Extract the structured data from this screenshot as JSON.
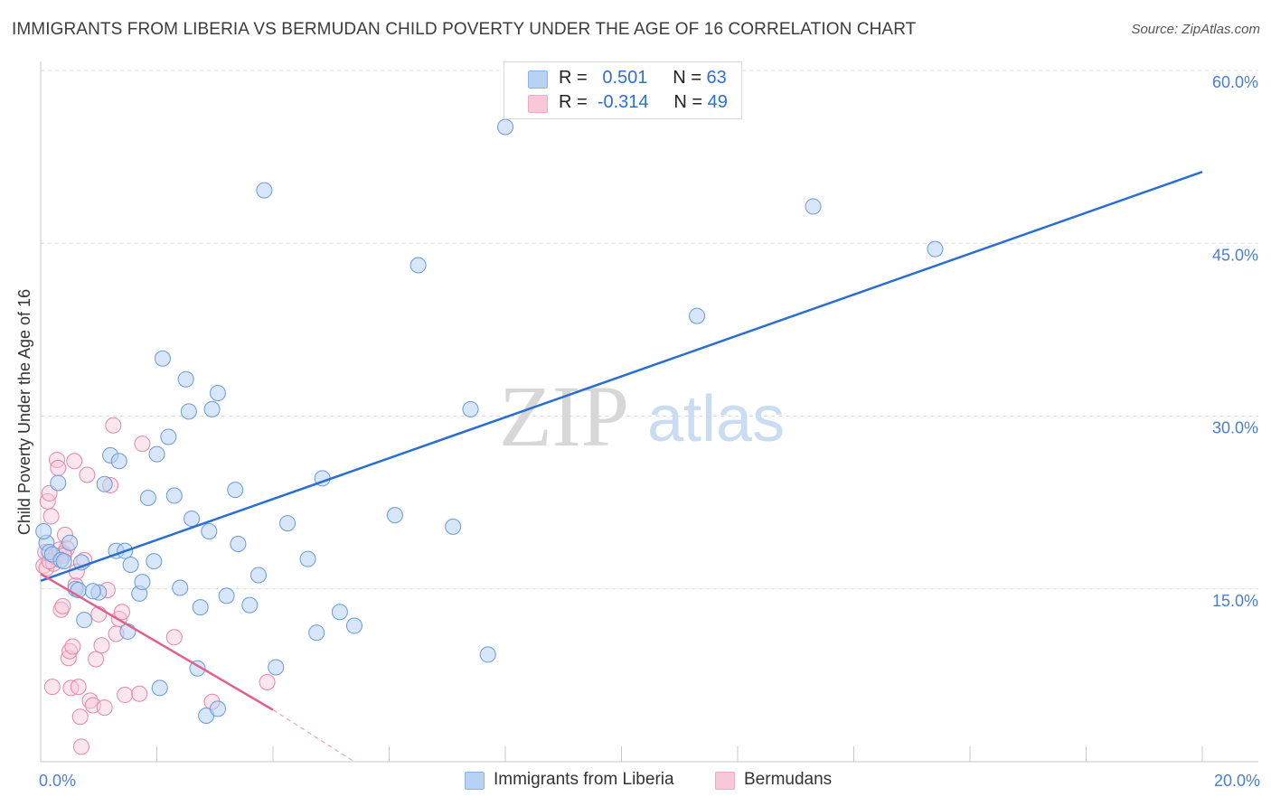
{
  "title": "IMMIGRANTS FROM LIBERIA VS BERMUDAN CHILD POVERTY UNDER THE AGE OF 16 CORRELATION CHART",
  "source": "Source: ZipAtlas.com",
  "watermark": {
    "part1": "ZIP",
    "part2": "atlas"
  },
  "legend": {
    "rows": [
      {
        "r_label": "R =",
        "r_value": "0.501",
        "n_label": "N =",
        "n_value": "63"
      },
      {
        "r_label": "R =",
        "r_value": "-0.314",
        "n_label": "N =",
        "n_value": "49"
      }
    ]
  },
  "chart_data": {
    "type": "scatter",
    "title": "IMMIGRANTS FROM LIBERIA VS BERMUDAN CHILD POVERTY UNDER THE AGE OF 16 CORRELATION CHART",
    "xlabel": "",
    "ylabel": "Child Poverty Under the Age of 16",
    "xlim": [
      0,
      20
    ],
    "ylim": [
      0,
      60
    ],
    "x_tick_labels": [
      "0.0%",
      "20.0%"
    ],
    "y_ticks": [
      15,
      30,
      45,
      60
    ],
    "y_tick_labels": [
      "15.0%",
      "30.0%",
      "45.0%",
      "60.0%"
    ],
    "series": [
      {
        "name": "Immigrants from Liberia",
        "color": "#8ab4e8",
        "edge": "#6a9ad8",
        "points": [
          [
            0.1,
            19.0
          ],
          [
            0.15,
            18.2
          ],
          [
            0.2,
            18.0
          ],
          [
            0.3,
            24.2
          ],
          [
            0.35,
            17.5
          ],
          [
            0.4,
            17.4
          ],
          [
            0.5,
            19.0
          ],
          [
            0.6,
            15.0
          ],
          [
            0.65,
            14.9
          ],
          [
            0.7,
            17.3
          ],
          [
            0.75,
            12.3
          ],
          [
            1.0,
            14.7
          ],
          [
            1.1,
            24.1
          ],
          [
            1.2,
            26.6
          ],
          [
            1.35,
            26.1
          ],
          [
            1.3,
            18.3
          ],
          [
            1.45,
            18.3
          ],
          [
            1.5,
            11.3
          ],
          [
            1.55,
            17.1
          ],
          [
            1.7,
            14.6
          ],
          [
            1.75,
            15.6
          ],
          [
            1.85,
            22.9
          ],
          [
            1.95,
            17.4
          ],
          [
            2.0,
            26.7
          ],
          [
            2.05,
            6.4
          ],
          [
            2.1,
            35.0
          ],
          [
            2.2,
            28.2
          ],
          [
            2.3,
            23.1
          ],
          [
            2.4,
            15.1
          ],
          [
            2.5,
            33.2
          ],
          [
            2.55,
            30.4
          ],
          [
            2.6,
            21.1
          ],
          [
            2.7,
            8.1
          ],
          [
            2.75,
            13.4
          ],
          [
            2.85,
            4.0
          ],
          [
            2.9,
            20.0
          ],
          [
            2.95,
            30.6
          ],
          [
            3.05,
            4.6
          ],
          [
            3.05,
            32.0
          ],
          [
            3.2,
            14.4
          ],
          [
            3.35,
            23.6
          ],
          [
            3.4,
            18.9
          ],
          [
            3.6,
            13.6
          ],
          [
            3.75,
            16.2
          ],
          [
            3.85,
            49.6
          ],
          [
            4.05,
            8.2
          ],
          [
            4.25,
            20.7
          ],
          [
            4.6,
            17.6
          ],
          [
            4.75,
            11.2
          ],
          [
            4.85,
            24.6
          ],
          [
            5.15,
            13.0
          ],
          [
            5.4,
            11.8
          ],
          [
            6.1,
            21.4
          ],
          [
            6.5,
            43.1
          ],
          [
            7.1,
            20.4
          ],
          [
            7.4,
            30.6
          ],
          [
            7.7,
            9.3
          ],
          [
            8.0,
            55.1
          ],
          [
            11.3,
            38.7
          ],
          [
            13.3,
            48.2
          ],
          [
            15.4,
            44.5
          ],
          [
            0.05,
            20.0
          ],
          [
            0.9,
            14.8
          ]
        ],
        "trendline": {
          "x0": 0,
          "y0": 15.7,
          "x1": 20,
          "y1": 51.2
        }
      },
      {
        "name": "Bermudans",
        "color": "#f4a9c1",
        "edge": "#e886a6",
        "points": [
          [
            0.05,
            17.0
          ],
          [
            0.08,
            18.2
          ],
          [
            0.1,
            16.8
          ],
          [
            0.12,
            22.6
          ],
          [
            0.15,
            23.3
          ],
          [
            0.18,
            21.3
          ],
          [
            0.2,
            6.5
          ],
          [
            0.22,
            17.2
          ],
          [
            0.25,
            17.8
          ],
          [
            0.28,
            26.2
          ],
          [
            0.3,
            25.5
          ],
          [
            0.32,
            18.4
          ],
          [
            0.35,
            13.2
          ],
          [
            0.38,
            13.5
          ],
          [
            0.4,
            18.1
          ],
          [
            0.42,
            19.7
          ],
          [
            0.45,
            18.5
          ],
          [
            0.48,
            9.0
          ],
          [
            0.5,
            9.6
          ],
          [
            0.52,
            6.4
          ],
          [
            0.55,
            10.0
          ],
          [
            0.58,
            26.1
          ],
          [
            0.6,
            15.3
          ],
          [
            0.62,
            16.5
          ],
          [
            0.65,
            6.5
          ],
          [
            0.68,
            3.9
          ],
          [
            0.7,
            1.3
          ],
          [
            0.75,
            17.5
          ],
          [
            0.8,
            24.9
          ],
          [
            0.85,
            5.3
          ],
          [
            0.9,
            4.9
          ],
          [
            0.95,
            8.9
          ],
          [
            1.0,
            12.8
          ],
          [
            1.05,
            10.1
          ],
          [
            1.1,
            4.7
          ],
          [
            1.15,
            14.9
          ],
          [
            1.2,
            24.0
          ],
          [
            1.25,
            29.2
          ],
          [
            1.3,
            11.1
          ],
          [
            1.35,
            12.4
          ],
          [
            1.4,
            13.0
          ],
          [
            1.45,
            5.8
          ],
          [
            1.7,
            5.9
          ],
          [
            1.75,
            27.6
          ],
          [
            2.3,
            10.8
          ],
          [
            2.95,
            5.2
          ],
          [
            3.9,
            6.9
          ],
          [
            0.15,
            17.4
          ],
          [
            0.4,
            17.9
          ]
        ],
        "trendline": {
          "x0": 0,
          "y0": 16.3,
          "x1": 4.0,
          "y1": 4.5
        },
        "trendline_dashed": {
          "x0": 4.0,
          "y0": 4.5,
          "x1": 5.4,
          "y1": 0.0
        }
      }
    ]
  }
}
